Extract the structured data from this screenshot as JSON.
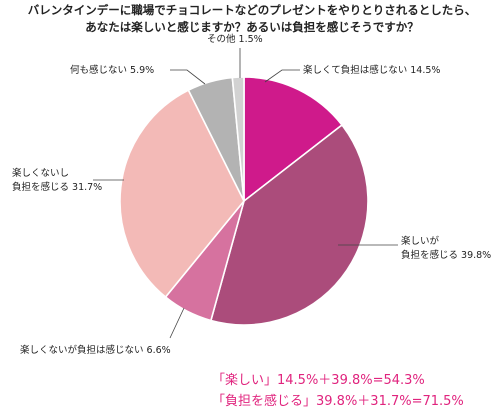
{
  "chart_data": {
    "type": "pie",
    "title_lines": [
      "バレンタインデーに職場でチョコレートなどのプレゼントをやりとりされるとしたら、",
      "あなたは楽しいと感じますか？あるいは負担を感じそうですか？"
    ],
    "start_angle_deg": 0,
    "direction": "clockwise",
    "slices": [
      {
        "label_lines": [
          "楽しくて負担は感じない 14.5%"
        ],
        "value": 14.5,
        "color": "#cf1a8b"
      },
      {
        "label_lines": [
          "楽しいが",
          "負担を感じる 39.8%"
        ],
        "value": 39.8,
        "color": "#ab4c7b"
      },
      {
        "label_lines": [
          "楽しくないが負担は感じない 6.6%"
        ],
        "value": 6.6,
        "color": "#d6729f"
      },
      {
        "label_lines": [
          "楽しくないし",
          "負担を感じる 31.7%"
        ],
        "value": 31.7,
        "color": "#f3bab7"
      },
      {
        "label_lines": [
          "何も感じない 5.9%"
        ],
        "value": 5.9,
        "color": "#b3b3b3"
      },
      {
        "label_lines": [
          "その他 1.5%"
        ],
        "value": 1.5,
        "color": "#d2d2d2"
      }
    ],
    "summary_lines": [
      "「楽しい」14.5%＋39.8%=54.3%",
      "「負担を感じる」39.8%＋31.7%=71.5%"
    ],
    "summary_color": "#e0247e",
    "legend": "none"
  }
}
